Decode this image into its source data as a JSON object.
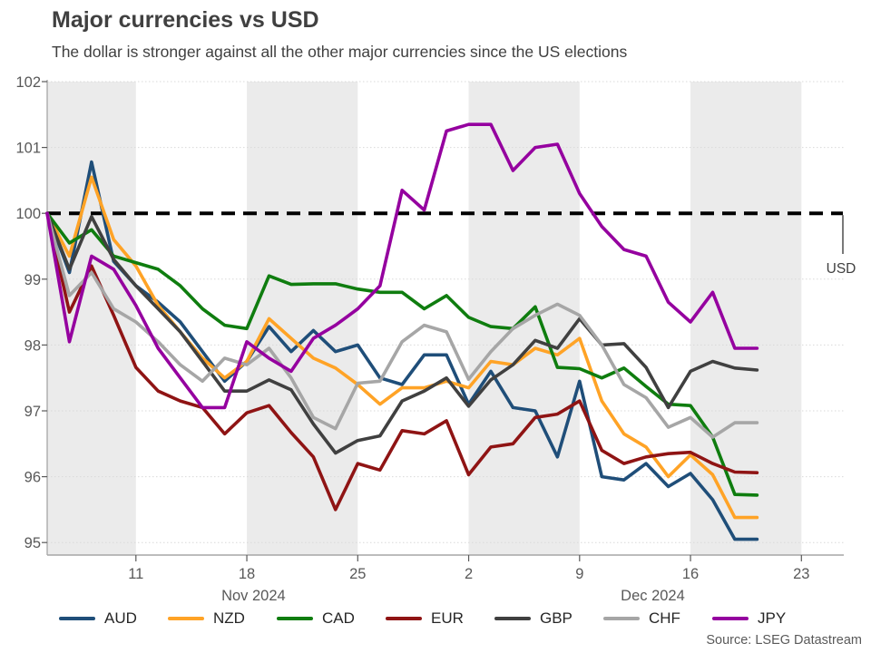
{
  "header": {
    "title": "Major currencies vs USD",
    "subtitle": "The dollar is stronger against all the other major currencies since the US elections"
  },
  "source": "Source: LSEG Datastream",
  "colors": {
    "background": "#ffffff",
    "title_text": "#404040",
    "axis_text": "#595959",
    "legend_text": "#262626",
    "gridline": "#d9d9d9",
    "week_band": "#ebebeb",
    "axis_spine": "#a6a6a6",
    "baseline_dashed": "#000000",
    "usd_label_text": "#404040"
  },
  "chart_data": {
    "type": "line",
    "title": "Major currencies vs USD",
    "subtitle": "The dollar is stronger against all the other major currencies since the US elections",
    "ylim": [
      95,
      102
    ],
    "yticks": [
      95,
      96,
      97,
      98,
      99,
      100,
      101,
      102
    ],
    "grid": "horizontal-dotted",
    "legend_position": "bottom",
    "baseline": {
      "value": 100,
      "label": "USD"
    },
    "x_tick_labels": [
      "11",
      "18",
      "25",
      "2",
      "9",
      "16",
      "23"
    ],
    "x_tick_indices": [
      4,
      9,
      14,
      19,
      24,
      29,
      34
    ],
    "month_labels": [
      {
        "label": "Nov 2024",
        "center_index": 9.3
      },
      {
        "label": "Dec 2024",
        "center_index": 27.3
      }
    ],
    "shaded_bands_index_ranges": [
      [
        0,
        4
      ],
      [
        9,
        14
      ],
      [
        19,
        24
      ],
      [
        29,
        34
      ]
    ],
    "dates": [
      "Nov 5",
      "Nov 6",
      "Nov 7",
      "Nov 8",
      "Nov 11",
      "Nov 12",
      "Nov 13",
      "Nov 14",
      "Nov 15",
      "Nov 18",
      "Nov 19",
      "Nov 20",
      "Nov 21",
      "Nov 22",
      "Nov 25",
      "Nov 26",
      "Nov 27",
      "Nov 28",
      "Nov 29",
      "Dec 2",
      "Dec 3",
      "Dec 4",
      "Dec 5",
      "Dec 6",
      "Dec 9",
      "Dec 10",
      "Dec 11",
      "Dec 12",
      "Dec 13",
      "Dec 16",
      "Dec 17",
      "Dec 18",
      "Dec 19"
    ],
    "series": [
      {
        "name": "AUD",
        "color": "#1f4e79",
        "values": [
          100,
          99.1,
          100.78,
          99.27,
          98.9,
          98.65,
          98.35,
          97.9,
          97.45,
          97.75,
          98.28,
          97.9,
          98.22,
          97.9,
          98.0,
          97.5,
          97.4,
          97.85,
          97.85,
          97.1,
          97.6,
          97.05,
          97.0,
          96.3,
          97.45,
          96.0,
          95.95,
          96.2,
          95.85,
          96.05,
          95.65,
          95.05,
          95.05
        ]
      },
      {
        "name": "NZD",
        "color": "#ffa326",
        "values": [
          100,
          99.35,
          100.55,
          99.6,
          99.2,
          98.6,
          98.2,
          97.8,
          97.5,
          97.75,
          98.4,
          98.1,
          97.8,
          97.65,
          97.4,
          97.1,
          97.35,
          97.35,
          97.45,
          97.35,
          97.75,
          97.7,
          97.95,
          97.85,
          98.1,
          97.15,
          96.65,
          96.45,
          96.0,
          96.33,
          96.03,
          95.38,
          95.38
        ]
      },
      {
        "name": "CAD",
        "color": "#0f7d0f",
        "values": [
          100,
          99.55,
          99.75,
          99.35,
          99.25,
          99.15,
          98.9,
          98.55,
          98.3,
          98.25,
          99.05,
          98.92,
          98.93,
          98.93,
          98.85,
          98.8,
          98.8,
          98.55,
          98.75,
          98.42,
          98.28,
          98.25,
          98.58,
          97.66,
          97.64,
          97.5,
          97.65,
          97.37,
          97.1,
          97.08,
          96.6,
          95.73,
          95.72
        ]
      },
      {
        "name": "EUR",
        "color": "#8f1414",
        "values": [
          100,
          98.5,
          99.2,
          98.45,
          97.66,
          97.3,
          97.15,
          97.05,
          96.65,
          96.97,
          97.08,
          96.67,
          96.3,
          95.5,
          96.2,
          96.1,
          96.7,
          96.65,
          96.85,
          96.03,
          96.45,
          96.5,
          96.9,
          96.95,
          97.15,
          96.4,
          96.2,
          96.3,
          96.35,
          96.37,
          96.2,
          96.07,
          96.06
        ]
      },
      {
        "name": "GBP",
        "color": "#404040",
        "values": [
          100,
          99.15,
          99.95,
          99.3,
          98.9,
          98.55,
          98.2,
          97.75,
          97.3,
          97.3,
          97.47,
          97.32,
          96.8,
          96.36,
          96.55,
          96.62,
          97.15,
          97.3,
          97.5,
          97.07,
          97.47,
          97.7,
          98.07,
          97.95,
          98.4,
          98.0,
          98.02,
          97.66,
          97.05,
          97.6,
          97.75,
          97.65,
          97.62
        ]
      },
      {
        "name": "CHF",
        "color": "#a6a6a6",
        "values": [
          100,
          98.75,
          99.1,
          98.55,
          98.35,
          98.05,
          97.7,
          97.45,
          97.8,
          97.7,
          97.95,
          97.5,
          96.9,
          96.73,
          97.42,
          97.45,
          98.05,
          98.3,
          98.2,
          97.48,
          97.9,
          98.25,
          98.45,
          98.62,
          98.45,
          98.0,
          97.4,
          97.2,
          96.75,
          96.9,
          96.6,
          96.82,
          96.82
        ]
      },
      {
        "name": "JPY",
        "color": "#95009f",
        "values": [
          100,
          98.05,
          99.35,
          99.15,
          98.6,
          97.95,
          97.5,
          97.05,
          97.05,
          98.05,
          97.8,
          97.6,
          98.1,
          98.3,
          98.55,
          98.9,
          100.35,
          100.05,
          101.25,
          101.35,
          101.35,
          100.65,
          101.0,
          101.05,
          100.3,
          99.8,
          99.45,
          99.35,
          98.65,
          98.35,
          98.8,
          97.95,
          97.95
        ]
      }
    ]
  }
}
